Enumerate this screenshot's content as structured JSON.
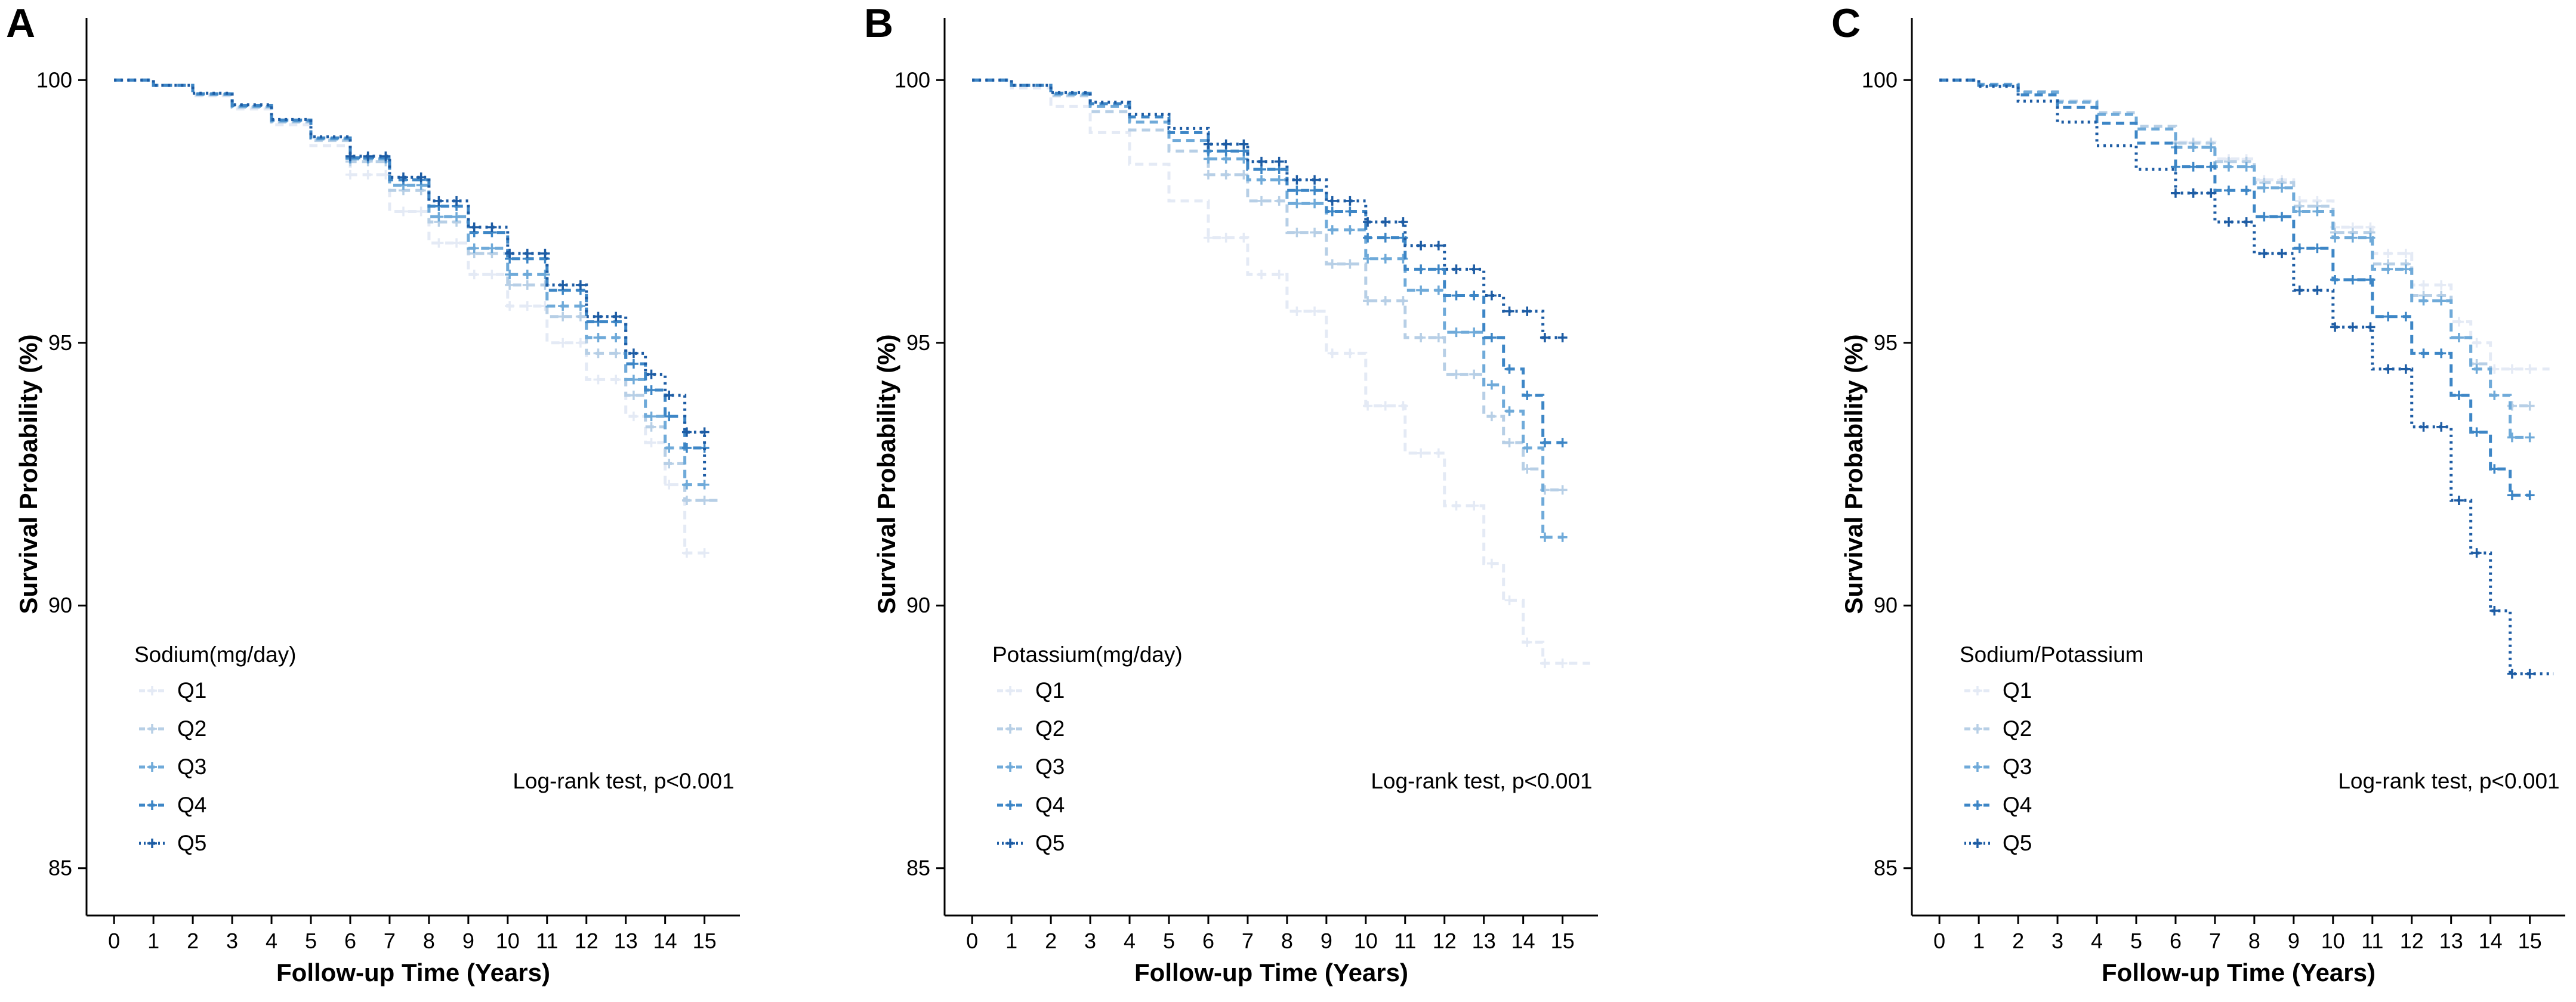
{
  "chart_data": [
    {
      "panel": "A",
      "type": "line",
      "subtype": "kaplan-meier",
      "title": "",
      "xlabel": "Follow-up Time (Years)",
      "ylabel": "Survival Probability (%)",
      "xticks": [
        0,
        1,
        2,
        3,
        4,
        5,
        6,
        7,
        8,
        9,
        10,
        11,
        12,
        13,
        14,
        15
      ],
      "yticks": [
        85,
        90,
        95,
        100
      ],
      "xlim": [
        -0.7,
        15.9
      ],
      "ylim": [
        84.1,
        100.9
      ],
      "grid": false,
      "legend": {
        "title": "Sodium(mg/day)",
        "position": "bottom-left"
      },
      "annotation": "Log-rank test, p<0.001",
      "series": [
        {
          "name": "Q1",
          "color": "#e4eaf5",
          "dash": "dash",
          "x": [
            0,
            1,
            2,
            3,
            4,
            5,
            6,
            7,
            8,
            9,
            10,
            11,
            12,
            13,
            13.5,
            14,
            14.5,
            15
          ],
          "values": [
            100,
            99.9,
            99.7,
            99.45,
            99.15,
            98.75,
            98.2,
            97.5,
            96.9,
            96.3,
            95.7,
            95.0,
            94.3,
            93.6,
            93.1,
            92.3,
            91.0,
            91.0
          ]
        },
        {
          "name": "Q2",
          "color": "#b7cfe6",
          "dash": "dash",
          "x": [
            0,
            1,
            2,
            3,
            4,
            5,
            6,
            7,
            8,
            9,
            10,
            11,
            12,
            13,
            13.5,
            14,
            14.5,
            15,
            15.4
          ],
          "values": [
            100,
            99.9,
            99.72,
            99.48,
            99.2,
            98.85,
            98.45,
            97.9,
            97.3,
            96.7,
            96.1,
            95.5,
            94.8,
            94.0,
            93.4,
            92.7,
            92.0,
            92.0,
            92.0
          ]
        },
        {
          "name": "Q3",
          "color": "#6faad9",
          "dash": "dash",
          "x": [
            0,
            1,
            2,
            3,
            4,
            5,
            6,
            7,
            8,
            9,
            10,
            11,
            12,
            13,
            13.5,
            14,
            14.5,
            15
          ],
          "values": [
            100,
            99.9,
            99.73,
            99.5,
            99.22,
            98.88,
            98.5,
            98.0,
            97.4,
            96.8,
            96.3,
            95.7,
            95.1,
            94.3,
            93.6,
            93.0,
            92.3,
            92.3
          ]
        },
        {
          "name": "Q4",
          "color": "#3d86c6",
          "dash": "dash",
          "x": [
            0,
            1,
            2,
            3,
            4,
            5,
            6,
            7,
            8,
            9,
            10,
            11,
            12,
            13,
            13.5,
            14,
            14.5,
            15
          ],
          "values": [
            100,
            99.9,
            99.74,
            99.52,
            99.24,
            98.9,
            98.52,
            98.1,
            97.6,
            97.1,
            96.6,
            96.0,
            95.4,
            94.6,
            94.1,
            93.6,
            93.0,
            93.0
          ]
        },
        {
          "name": "Q5",
          "color": "#1d5ca4",
          "dash": "dot",
          "x": [
            0,
            1,
            2,
            3,
            4,
            5,
            6,
            7,
            8,
            9,
            10,
            11,
            12,
            13,
            13.5,
            14,
            14.5,
            15
          ],
          "values": [
            100,
            99.9,
            99.75,
            99.53,
            99.25,
            98.92,
            98.55,
            98.15,
            97.7,
            97.2,
            96.7,
            96.1,
            95.5,
            94.8,
            94.4,
            94.0,
            93.3,
            92.4
          ]
        }
      ]
    },
    {
      "panel": "B",
      "type": "line",
      "subtype": "kaplan-meier",
      "title": "",
      "xlabel": "Follow-up Time (Years)",
      "ylabel": "Survival Probability (%)",
      "xticks": [
        0,
        1,
        2,
        3,
        4,
        5,
        6,
        7,
        8,
        9,
        10,
        11,
        12,
        13,
        14,
        15
      ],
      "yticks": [
        85,
        90,
        95,
        100
      ],
      "xlim": [
        -0.7,
        15.9
      ],
      "ylim": [
        84.1,
        100.9
      ],
      "grid": false,
      "legend": {
        "title": "Potassium(mg/day)",
        "position": "bottom-left"
      },
      "annotation": "Log-rank test, p<0.001",
      "series": [
        {
          "name": "Q1",
          "color": "#e4eaf5",
          "dash": "dash",
          "x": [
            0,
            1,
            2,
            3,
            4,
            5,
            6,
            7,
            8,
            9,
            10,
            11,
            12,
            13,
            13.5,
            14,
            14.5,
            15,
            15.7
          ],
          "values": [
            100,
            99.85,
            99.5,
            99.0,
            98.4,
            97.7,
            97.0,
            96.3,
            95.6,
            94.8,
            93.8,
            92.9,
            91.9,
            90.8,
            90.1,
            89.3,
            88.9,
            88.9,
            88.9
          ]
        },
        {
          "name": "Q2",
          "color": "#b7cfe6",
          "dash": "dash",
          "x": [
            0,
            1,
            2,
            3,
            4,
            5,
            6,
            7,
            8,
            9,
            10,
            11,
            12,
            13,
            13.5,
            14,
            14.5,
            15
          ],
          "values": [
            100,
            99.9,
            99.7,
            99.4,
            99.05,
            98.65,
            98.2,
            97.7,
            97.1,
            96.5,
            95.8,
            95.1,
            94.4,
            93.6,
            93.1,
            92.6,
            92.2,
            92.2
          ]
        },
        {
          "name": "Q3",
          "color": "#6faad9",
          "dash": "dash",
          "x": [
            0,
            1,
            2,
            3,
            4,
            5,
            6,
            7,
            8,
            9,
            10,
            11,
            12,
            13,
            13.5,
            14,
            14.5,
            15
          ],
          "values": [
            100,
            99.9,
            99.73,
            99.5,
            99.2,
            98.85,
            98.5,
            98.1,
            97.65,
            97.15,
            96.6,
            96.0,
            95.2,
            94.2,
            93.7,
            93.0,
            91.3,
            91.3
          ]
        },
        {
          "name": "Q4",
          "color": "#3d86c6",
          "dash": "dash",
          "x": [
            0,
            1,
            2,
            3,
            4,
            5,
            6,
            7,
            8,
            9,
            10,
            11,
            12,
            13,
            13.5,
            14,
            14.5,
            15
          ],
          "values": [
            100,
            99.9,
            99.75,
            99.55,
            99.3,
            99.0,
            98.65,
            98.3,
            97.9,
            97.5,
            97.0,
            96.4,
            95.9,
            95.1,
            94.5,
            94.0,
            93.1,
            93.1
          ]
        },
        {
          "name": "Q5",
          "color": "#1d5ca4",
          "dash": "dot",
          "x": [
            0,
            1,
            2,
            3,
            4,
            5,
            6,
            7,
            8,
            9,
            10,
            11,
            12,
            13,
            13.5,
            14,
            14.5,
            15
          ],
          "values": [
            100,
            99.9,
            99.76,
            99.58,
            99.35,
            99.08,
            98.78,
            98.45,
            98.1,
            97.7,
            97.3,
            96.85,
            96.4,
            95.9,
            95.6,
            95.6,
            95.1,
            95.1
          ]
        }
      ]
    },
    {
      "panel": "C",
      "type": "line",
      "subtype": "kaplan-meier",
      "title": "",
      "xlabel": "Follow-up Time (Years)",
      "ylabel": "Survival Probability (%)",
      "xticks": [
        0,
        1,
        2,
        3,
        4,
        5,
        6,
        7,
        8,
        9,
        10,
        11,
        12,
        13,
        14,
        15
      ],
      "yticks": [
        85,
        90,
        95,
        100
      ],
      "xlim": [
        -0.7,
        15.9
      ],
      "ylim": [
        84.1,
        100.9
      ],
      "grid": false,
      "legend": {
        "title": "Sodium/Potassium",
        "position": "bottom-left"
      },
      "annotation": "Log-rank test, p<0.001",
      "series": [
        {
          "name": "Q1",
          "color": "#e4eaf5",
          "dash": "dash",
          "x": [
            0,
            1,
            2,
            3,
            4,
            5,
            6,
            7,
            8,
            9,
            10,
            11,
            12,
            13,
            13.5,
            14,
            14.5,
            15,
            15.5
          ],
          "values": [
            100,
            99.92,
            99.78,
            99.6,
            99.38,
            99.12,
            98.82,
            98.5,
            98.1,
            97.7,
            97.2,
            96.7,
            96.1,
            95.4,
            95.0,
            94.5,
            94.5,
            94.5,
            94.5
          ]
        },
        {
          "name": "Q2",
          "color": "#b7cfe6",
          "dash": "dash",
          "x": [
            0,
            1,
            2,
            3,
            4,
            5,
            6,
            7,
            8,
            9,
            10,
            11,
            12,
            13,
            13.5,
            14,
            14.5,
            15
          ],
          "values": [
            100,
            99.92,
            99.78,
            99.6,
            99.38,
            99.12,
            98.8,
            98.45,
            98.05,
            97.6,
            97.1,
            96.5,
            95.9,
            95.1,
            94.6,
            94.0,
            93.8,
            93.8
          ]
        },
        {
          "name": "Q3",
          "color": "#6faad9",
          "dash": "dash",
          "x": [
            0,
            1,
            2,
            3,
            4,
            5,
            6,
            7,
            8,
            9,
            10,
            11,
            12,
            13,
            13.5,
            14,
            14.5,
            15
          ],
          "values": [
            100,
            99.92,
            99.77,
            99.58,
            99.35,
            99.07,
            98.72,
            98.35,
            97.95,
            97.5,
            97.0,
            96.4,
            95.8,
            95.1,
            94.5,
            94.0,
            93.2,
            93.2
          ]
        },
        {
          "name": "Q4",
          "color": "#3d86c6",
          "dash": "dash",
          "x": [
            0,
            1,
            2,
            3,
            4,
            5,
            6,
            7,
            8,
            9,
            10,
            11,
            12,
            13,
            13.5,
            14,
            14.5,
            15
          ],
          "values": [
            100,
            99.9,
            99.72,
            99.48,
            99.18,
            98.8,
            98.35,
            97.9,
            97.4,
            96.8,
            96.2,
            95.5,
            94.8,
            94.0,
            93.3,
            92.6,
            92.1,
            92.1
          ]
        },
        {
          "name": "Q5",
          "color": "#1d5ca4",
          "dash": "dot",
          "x": [
            0,
            1,
            2,
            3,
            4,
            5,
            6,
            7,
            8,
            9,
            10,
            11,
            12,
            13,
            13.5,
            14,
            14.5,
            15,
            15.6
          ],
          "values": [
            100,
            99.88,
            99.6,
            99.2,
            98.75,
            98.3,
            97.85,
            97.3,
            96.7,
            96.0,
            95.3,
            94.5,
            93.4,
            92.0,
            91.0,
            89.9,
            88.7,
            88.7,
            88.7
          ]
        }
      ]
    }
  ]
}
